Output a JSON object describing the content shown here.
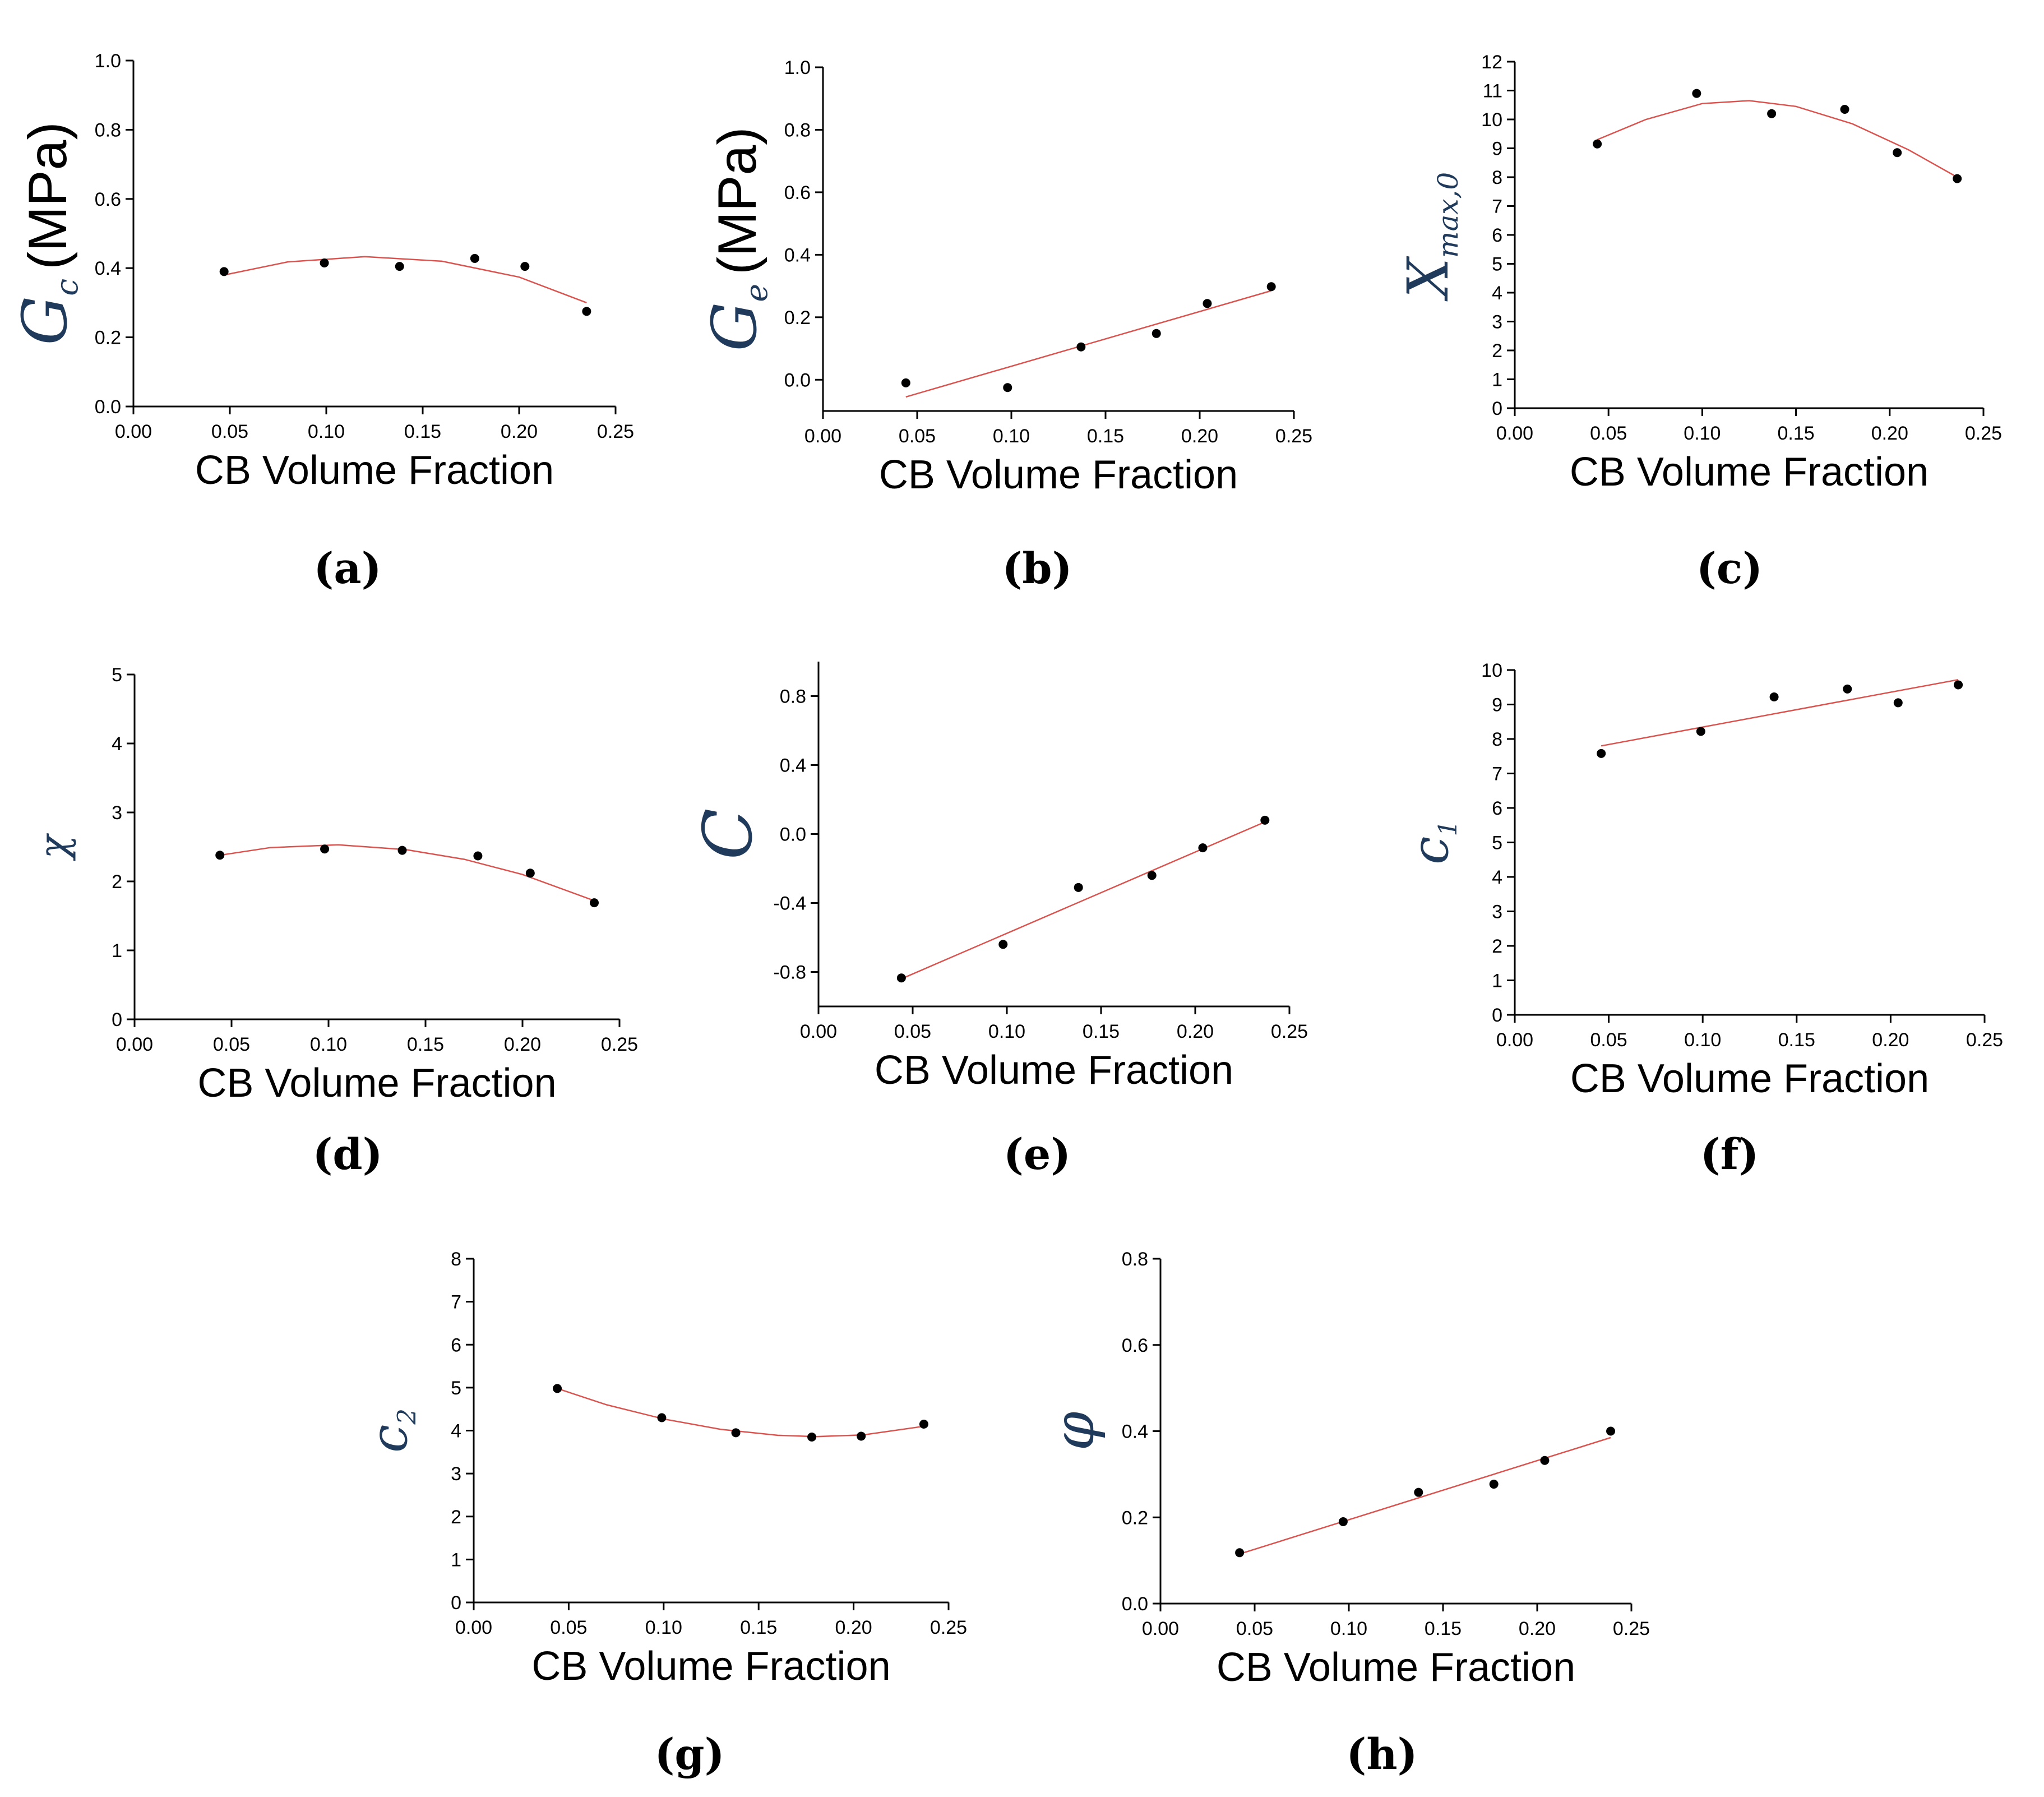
{
  "figure": {
    "panels_label_style": "(letter)",
    "colors": {
      "fit_line": "#d9534f",
      "points": "#000000",
      "axis": "#000000",
      "ylabel_symbol": "#1f3a5a"
    }
  },
  "chart_data": [
    {
      "id": "a",
      "panel_label": "(a)",
      "type": "scatter",
      "xlabel": "CB Volume Fraction",
      "ylabel": {
        "symbol": "G",
        "sub": "c",
        "unit": "(MPa)"
      },
      "xlim": [
        0,
        0.25
      ],
      "ylim": [
        0,
        1.0
      ],
      "xticks": [
        "0.00",
        "0.05",
        "0.10",
        "0.15",
        "0.20",
        "0.25"
      ],
      "yticks": [
        "0.0",
        "0.2",
        "0.4",
        "0.6",
        "0.8",
        "1.0"
      ],
      "points": [
        [
          0.047,
          0.39
        ],
        [
          0.099,
          0.415
        ],
        [
          0.138,
          0.405
        ],
        [
          0.177,
          0.428
        ],
        [
          0.203,
          0.405
        ],
        [
          0.235,
          0.275
        ]
      ],
      "fit": {
        "kind": "quadratic",
        "curve": [
          [
            0.047,
            0.38
          ],
          [
            0.08,
            0.418
          ],
          [
            0.12,
            0.433
          ],
          [
            0.16,
            0.42
          ],
          [
            0.2,
            0.374
          ],
          [
            0.235,
            0.3
          ]
        ]
      },
      "grid": false
    },
    {
      "id": "b",
      "panel_label": "(b)",
      "type": "scatter",
      "xlabel": "CB Volume Fraction",
      "ylabel": {
        "symbol": "G",
        "sub": "e",
        "unit": "(MPa)"
      },
      "xlim": [
        0,
        0.25
      ],
      "ylim": [
        -0.1,
        1.0
      ],
      "xticks": [
        "0.00",
        "0.05",
        "0.10",
        "0.15",
        "0.20",
        "0.25"
      ],
      "yticks": [
        "0.0",
        "0.2",
        "0.4",
        "0.6",
        "0.8",
        "1.0"
      ],
      "points": [
        [
          0.044,
          -0.01
        ],
        [
          0.098,
          -0.025
        ],
        [
          0.137,
          0.105
        ],
        [
          0.177,
          0.148
        ],
        [
          0.204,
          0.244
        ],
        [
          0.238,
          0.298
        ]
      ],
      "fit": {
        "kind": "linear",
        "curve": [
          [
            0.044,
            -0.055
          ],
          [
            0.238,
            0.285
          ]
        ]
      },
      "grid": false
    },
    {
      "id": "c",
      "panel_label": "(c)",
      "type": "scatter",
      "xlabel": "CB Volume Fraction",
      "ylabel": {
        "symbol": "X",
        "sub": "max,0",
        "unit": ""
      },
      "xlim": [
        0,
        0.25
      ],
      "ylim": [
        0,
        12
      ],
      "xticks": [
        "0.00",
        "0.05",
        "0.10",
        "0.15",
        "0.20",
        "0.25"
      ],
      "yticks": [
        "0",
        "1",
        "2",
        "3",
        "4",
        "5",
        "6",
        "7",
        "8",
        "9",
        "10",
        "11",
        "12"
      ],
      "points": [
        [
          0.044,
          9.15
        ],
        [
          0.097,
          10.9
        ],
        [
          0.137,
          10.2
        ],
        [
          0.176,
          10.35
        ],
        [
          0.204,
          8.85
        ],
        [
          0.236,
          7.95
        ]
      ],
      "fit": {
        "kind": "quadratic",
        "curve": [
          [
            0.044,
            9.3
          ],
          [
            0.07,
            10.0
          ],
          [
            0.1,
            10.55
          ],
          [
            0.125,
            10.65
          ],
          [
            0.15,
            10.45
          ],
          [
            0.18,
            9.85
          ],
          [
            0.21,
            8.95
          ],
          [
            0.236,
            8.0
          ]
        ]
      },
      "grid": false
    },
    {
      "id": "d",
      "panel_label": "(d)",
      "type": "scatter",
      "xlabel": "CB Volume Fraction",
      "ylabel": {
        "symbol": "χ",
        "sub": "",
        "unit": ""
      },
      "xlim": [
        0,
        0.25
      ],
      "ylim": [
        0,
        5
      ],
      "xticks": [
        "0.00",
        "0.05",
        "0.10",
        "0.15",
        "0.20",
        "0.25"
      ],
      "yticks": [
        "0",
        "1",
        "2",
        "3",
        "4",
        "5"
      ],
      "points": [
        [
          0.044,
          2.38
        ],
        [
          0.098,
          2.47
        ],
        [
          0.138,
          2.45
        ],
        [
          0.177,
          2.37
        ],
        [
          0.204,
          2.12
        ],
        [
          0.237,
          1.69
        ]
      ],
      "fit": {
        "kind": "quadratic",
        "curve": [
          [
            0.044,
            2.38
          ],
          [
            0.07,
            2.49
          ],
          [
            0.105,
            2.53
          ],
          [
            0.14,
            2.46
          ],
          [
            0.17,
            2.32
          ],
          [
            0.2,
            2.1
          ],
          [
            0.237,
            1.72
          ]
        ]
      },
      "grid": false
    },
    {
      "id": "e",
      "panel_label": "(e)",
      "type": "scatter",
      "xlabel": "CB Volume Fraction",
      "ylabel": {
        "symbol": "C",
        "sub": "",
        "unit": ""
      },
      "xlim": [
        0,
        0.25
      ],
      "ylim": [
        -1.0,
        1.0
      ],
      "xticks": [
        "0.00",
        "0.05",
        "0.10",
        "0.15",
        "0.20",
        "0.25"
      ],
      "yticks": [
        "-0.8",
        "-0.4",
        "0.0",
        "0.4",
        "0.8"
      ],
      "points": [
        [
          0.044,
          -0.835
        ],
        [
          0.098,
          -0.64
        ],
        [
          0.138,
          -0.31
        ],
        [
          0.177,
          -0.24
        ],
        [
          0.204,
          -0.08
        ],
        [
          0.237,
          0.08
        ]
      ],
      "fit": {
        "kind": "linear",
        "curve": [
          [
            0.044,
            -0.84
          ],
          [
            0.237,
            0.07
          ]
        ]
      },
      "grid": false
    },
    {
      "id": "f",
      "panel_label": "(f)",
      "type": "scatter",
      "xlabel": "CB Volume Fraction",
      "ylabel": {
        "symbol": "c",
        "sub": "1",
        "unit": ""
      },
      "xlim": [
        0,
        0.25
      ],
      "ylim": [
        0,
        10
      ],
      "xticks": [
        "0.00",
        "0.05",
        "0.10",
        "0.15",
        "0.20",
        "0.25"
      ],
      "yticks": [
        "0",
        "1",
        "2",
        "3",
        "4",
        "5",
        "6",
        "7",
        "8",
        "9",
        "10"
      ],
      "points": [
        [
          0.046,
          7.58
        ],
        [
          0.099,
          8.22
        ],
        [
          0.138,
          9.22
        ],
        [
          0.177,
          9.45
        ],
        [
          0.204,
          9.05
        ],
        [
          0.236,
          9.57
        ]
      ],
      "fit": {
        "kind": "linear",
        "curve": [
          [
            0.046,
            7.8
          ],
          [
            0.236,
            9.72
          ]
        ]
      },
      "grid": false
    },
    {
      "id": "g",
      "panel_label": "(g)",
      "type": "scatter",
      "xlabel": "CB Volume Fraction",
      "ylabel": {
        "symbol": "c",
        "sub": "2",
        "unit": ""
      },
      "xlim": [
        0,
        0.25
      ],
      "ylim": [
        0,
        8
      ],
      "xticks": [
        "0.00",
        "0.05",
        "0.10",
        "0.15",
        "0.20",
        "0.25"
      ],
      "yticks": [
        "0",
        "1",
        "2",
        "3",
        "4",
        "5",
        "6",
        "7",
        "8"
      ],
      "points": [
        [
          0.044,
          4.98
        ],
        [
          0.099,
          4.3
        ],
        [
          0.138,
          3.95
        ],
        [
          0.178,
          3.85
        ],
        [
          0.204,
          3.87
        ],
        [
          0.237,
          4.15
        ]
      ],
      "fit": {
        "kind": "quadratic",
        "curve": [
          [
            0.044,
            4.98
          ],
          [
            0.07,
            4.6
          ],
          [
            0.1,
            4.27
          ],
          [
            0.13,
            4.03
          ],
          [
            0.16,
            3.89
          ],
          [
            0.18,
            3.86
          ],
          [
            0.205,
            3.9
          ],
          [
            0.237,
            4.1
          ]
        ]
      },
      "grid": false
    },
    {
      "id": "h",
      "panel_label": "(h)",
      "type": "scatter",
      "xlabel": "CB Volume Fraction",
      "ylabel": {
        "symbol": "φ",
        "sub": "",
        "unit": ""
      },
      "xlim": [
        0,
        0.25
      ],
      "ylim": [
        0,
        0.8
      ],
      "xticks": [
        "0.00",
        "0.05",
        "0.10",
        "0.15",
        "0.20",
        "0.25"
      ],
      "yticks": [
        "0.0",
        "0.2",
        "0.4",
        "0.6",
        "0.8"
      ],
      "points": [
        [
          0.042,
          0.118
        ],
        [
          0.097,
          0.19
        ],
        [
          0.137,
          0.258
        ],
        [
          0.177,
          0.277
        ],
        [
          0.204,
          0.332
        ],
        [
          0.239,
          0.4
        ]
      ],
      "fit": {
        "kind": "linear",
        "curve": [
          [
            0.042,
            0.115
          ],
          [
            0.239,
            0.385
          ]
        ]
      },
      "grid": false
    }
  ]
}
